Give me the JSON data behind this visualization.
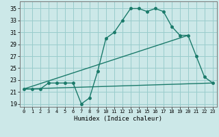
{
  "title": "",
  "xlabel": "Humidex (Indice chaleur)",
  "bg_color": "#cce8e8",
  "grid_color": "#99cccc",
  "line_color": "#1a7a6a",
  "xlim": [
    -0.5,
    23.5
  ],
  "ylim": [
    18.5,
    36.2
  ],
  "xticks": [
    0,
    1,
    2,
    3,
    4,
    5,
    6,
    7,
    8,
    9,
    10,
    11,
    12,
    13,
    14,
    15,
    16,
    17,
    18,
    19,
    20,
    21,
    22,
    23
  ],
  "yticks": [
    19,
    21,
    23,
    25,
    27,
    29,
    31,
    33,
    35
  ],
  "line1_x": [
    0,
    1,
    2,
    3,
    4,
    5,
    6,
    7,
    8,
    9,
    10,
    11,
    12,
    13,
    14,
    15,
    16,
    17,
    18,
    19,
    20,
    21,
    22,
    23
  ],
  "line1_y": [
    21.5,
    21.5,
    21.5,
    22.5,
    22.5,
    22.5,
    22.5,
    19.0,
    20.0,
    24.5,
    30.0,
    31.0,
    33.0,
    35.0,
    35.0,
    34.5,
    35.0,
    34.5,
    32.0,
    30.5,
    30.5,
    27.0,
    23.5,
    22.5
  ],
  "line2_x": [
    0,
    23
  ],
  "line2_y": [
    21.5,
    22.5
  ],
  "line3_x": [
    0,
    20
  ],
  "line3_y": [
    21.5,
    30.5
  ],
  "marker_size": 2.5,
  "line_width": 1.0,
  "xlabel_fontsize": 6.5,
  "xtick_fontsize": 5.0,
  "ytick_fontsize": 6.0
}
